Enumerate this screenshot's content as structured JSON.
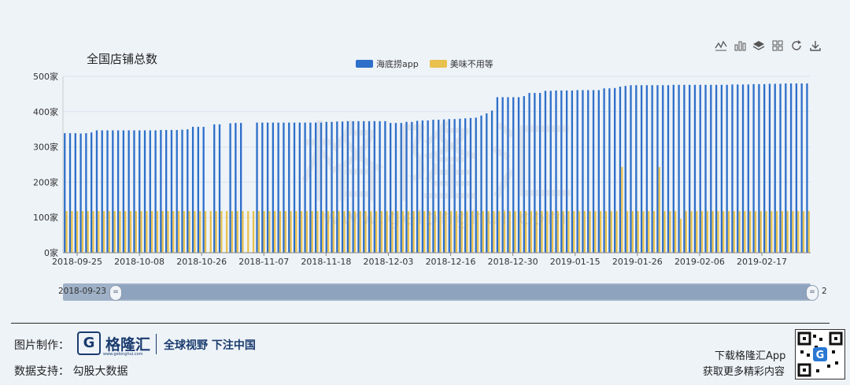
{
  "chart_data": {
    "type": "bar",
    "title": "全国店铺总数",
    "yunit": "家",
    "ylim": [
      0,
      500
    ],
    "yticks": [
      "0家",
      "100家",
      "200家",
      "300家",
      "400家",
      "500家"
    ],
    "xticks": [
      "2018-09-25",
      "2018-10-08",
      "2018-10-26",
      "2018-11-07",
      "2018-11-18",
      "2018-12-03",
      "2018-12-16",
      "2018-12-30",
      "2019-01-15",
      "2019-01-26",
      "2019-02-06",
      "2019-02-17"
    ],
    "grid": true,
    "legend_position": "top-center",
    "series": [
      {
        "name": "海底捞app",
        "color": "#2d6fc9",
        "values": [
          339,
          339,
          339,
          338,
          339,
          341,
          347,
          347,
          347,
          347,
          347,
          347,
          347,
          347,
          347,
          347,
          347,
          347,
          348,
          348,
          348,
          348,
          349,
          350,
          357,
          357,
          357,
          null,
          364,
          364,
          null,
          367,
          368,
          368,
          null,
          null,
          369,
          369,
          369,
          369,
          369,
          369,
          369,
          369,
          369,
          369,
          369,
          369,
          369,
          371,
          371,
          372,
          372,
          373,
          373,
          373,
          373,
          373,
          373,
          373,
          373,
          368,
          368,
          368,
          371,
          371,
          374,
          375,
          375,
          377,
          377,
          378,
          379,
          379,
          380,
          381,
          382,
          383,
          389,
          395,
          403,
          441,
          441,
          441,
          441,
          441,
          444,
          453,
          453,
          453,
          459,
          459,
          460,
          460,
          460,
          460,
          461,
          461,
          461,
          461,
          461,
          466,
          466,
          467,
          471,
          473,
          475,
          475,
          475,
          475,
          475,
          475,
          475,
          475,
          476,
          476,
          476,
          476,
          476,
          476,
          476,
          476,
          476,
          476,
          476,
          477,
          477,
          477,
          477,
          478,
          478,
          478,
          479,
          479,
          479,
          480,
          480,
          480,
          480,
          480
        ]
      },
      {
        "name": "美味不用等",
        "color": "#e8c14e",
        "values": [
          118,
          118,
          118,
          118,
          118,
          118,
          118,
          118,
          118,
          118,
          118,
          118,
          118,
          118,
          118,
          118,
          118,
          118,
          118,
          118,
          118,
          118,
          118,
          118,
          118,
          118,
          118,
          118,
          118,
          118,
          118,
          118,
          118,
          118,
          118,
          118,
          118,
          118,
          118,
          118,
          118,
          118,
          118,
          118,
          118,
          118,
          118,
          118,
          118,
          118,
          118,
          118,
          118,
          118,
          118,
          118,
          118,
          118,
          118,
          118,
          118,
          118,
          118,
          118,
          118,
          118,
          118,
          118,
          118,
          118,
          118,
          118,
          118,
          118,
          118,
          118,
          118,
          118,
          118,
          118,
          118,
          118,
          118,
          118,
          118,
          118,
          118,
          118,
          118,
          118,
          118,
          118,
          118,
          118,
          118,
          118,
          118,
          118,
          118,
          118,
          118,
          118,
          118,
          118,
          243,
          118,
          118,
          118,
          118,
          118,
          118,
          243,
          118,
          118,
          118,
          96,
          118,
          118,
          118,
          118,
          118,
          118,
          118,
          118,
          118,
          118,
          118,
          118,
          118,
          118,
          118,
          118,
          118,
          118,
          118,
          118,
          118,
          118,
          118,
          118
        ]
      }
    ],
    "zoom_start_label": "2018-09-23",
    "zoom_end_label": "2"
  },
  "colors": {
    "primary": "#2d6fc9",
    "secondary": "#e8c14e",
    "grid": "#dbe3ec",
    "axis": "#888"
  },
  "toolbox": [
    "line-chart-icon",
    "bar-chart-icon",
    "stack-icon",
    "tiled-icon",
    "restore-icon",
    "download-icon"
  ],
  "watermark": {
    "text": "格隆汇",
    "url": "www.gelonghui.com"
  },
  "footer": {
    "made_by_label": "图片制作：",
    "logo_text": "格隆汇",
    "logo_sub": "www.gelonghui.com",
    "slogan": "全球视野 下注中国",
    "data_support": "数据支持： 勾股大数据",
    "download_line1": "下载格隆汇App",
    "download_line2": "获取更多精彩内容"
  }
}
